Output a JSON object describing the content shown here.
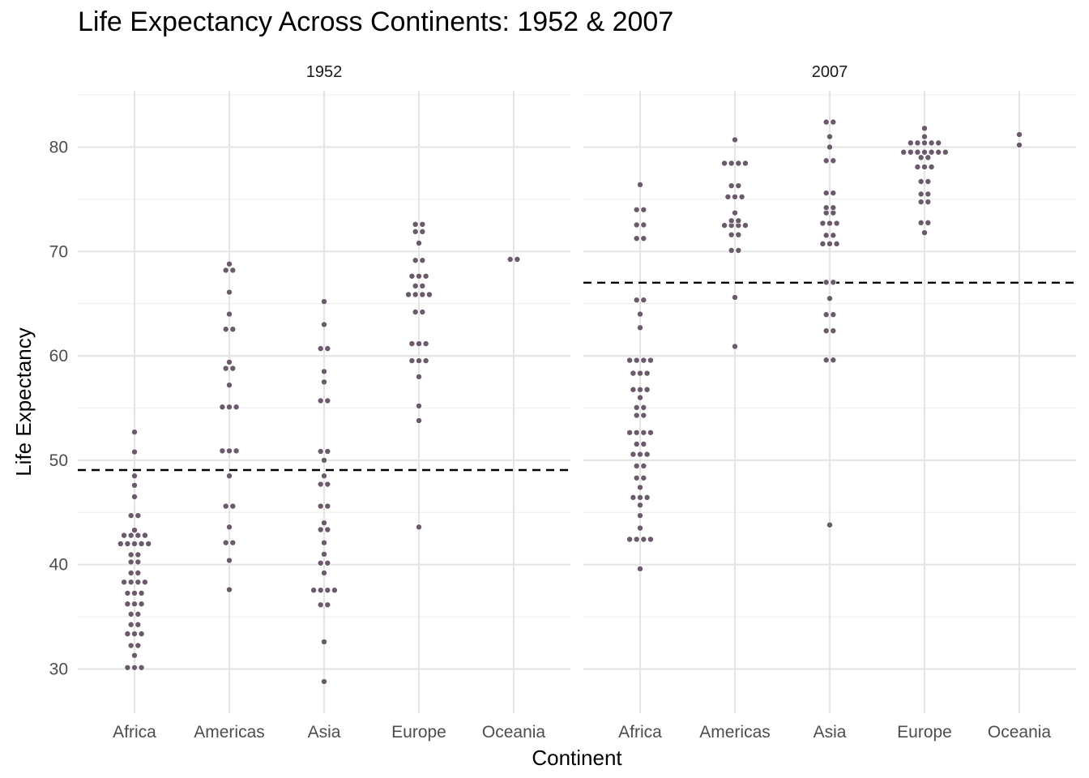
{
  "chart_data": {
    "type": "scatter",
    "subtype": "beeswarm",
    "title": "Life Expectancy Across Continents: 1952 & 2007",
    "xlabel": "Continent",
    "ylabel": "Life Expectancy",
    "categories": [
      "Africa",
      "Americas",
      "Asia",
      "Europe",
      "Oceania"
    ],
    "ylim": [
      26,
      85
    ],
    "yticks": [
      30,
      40,
      50,
      60,
      70,
      80
    ],
    "grid": true,
    "reference_line_style": "dashed",
    "point_color": "#6b5a6b",
    "panels": [
      {
        "strip_label": "1952",
        "reference_line": 49.06,
        "series": [
          {
            "category": "Africa",
            "values": [
              30.0,
              30.1,
              30.3,
              31.3,
              32.0,
              32.5,
              33.0,
              33.5,
              33.6,
              34.0,
              34.5,
              35.0,
              35.5,
              35.9,
              36.3,
              36.5,
              37.0,
              37.3,
              37.5,
              38.1,
              38.2,
              38.4,
              38.6,
              39.0,
              39.4,
              40.0,
              40.5,
              40.7,
              41.2,
              41.7,
              41.9,
              42.0,
              42.1,
              42.3,
              42.5,
              42.6,
              43.0,
              43.1,
              43.3,
              44.6,
              44.8,
              46.5,
              47.6,
              48.5,
              50.8,
              52.7
            ]
          },
          {
            "category": "Americas",
            "values": [
              37.6,
              40.4,
              41.9,
              42.3,
              43.6,
              45.3,
              45.9,
              48.5,
              50.8,
              50.9,
              51.0,
              55.0,
              55.1,
              55.2,
              57.2,
              58.5,
              59.1,
              59.4,
              62.5,
              62.6,
              64.0,
              66.1,
              68.0,
              68.4,
              68.8
            ]
          },
          {
            "category": "Asia",
            "values": [
              28.8,
              32.6,
              36.1,
              36.2,
              37.4,
              37.5,
              37.6,
              37.7,
              39.2,
              39.9,
              40.4,
              41.0,
              42.1,
              43.3,
              43.4,
              44.0,
              45.3,
              45.9,
              47.5,
              47.9,
              48.5,
              50.0,
              50.8,
              50.9,
              55.6,
              55.8,
              57.5,
              58.5,
              60.4,
              61.0,
              63.0,
              65.2
            ]
          },
          {
            "category": "Europe",
            "values": [
              43.6,
              53.8,
              55.2,
              58.0,
              59.2,
              59.6,
              59.8,
              61.0,
              61.2,
              61.3,
              64.0,
              64.4,
              65.5,
              65.9,
              66.0,
              66.1,
              66.5,
              66.9,
              67.4,
              67.5,
              68.0,
              68.9,
              69.4,
              70.8,
              71.8,
              72.0,
              72.5,
              72.7
            ]
          },
          {
            "category": "Oceania",
            "values": [
              69.1,
              69.4
            ]
          }
        ]
      },
      {
        "strip_label": "2007",
        "reference_line": 67.01,
        "series": [
          {
            "category": "Africa",
            "values": [
              39.6,
              42.1,
              42.4,
              42.6,
              42.6,
              43.5,
              44.7,
              45.7,
              46.4,
              46.4,
              46.5,
              47.4,
              48.3,
              48.3,
              49.3,
              49.6,
              50.4,
              50.6,
              50.7,
              51.5,
              51.6,
              52.3,
              52.5,
              52.9,
              52.9,
              54.1,
              54.5,
              54.8,
              55.3,
              56.0,
              56.7,
              56.7,
              56.9,
              58.0,
              58.4,
              58.6,
              59.4,
              59.4,
              59.5,
              60.0,
              62.7,
              64.0,
              65.2,
              65.5,
              71.2,
              71.3,
              72.3,
              72.8,
              74.0,
              74.0,
              76.4
            ]
          },
          {
            "category": "Americas",
            "values": [
              60.9,
              65.6,
              70.0,
              70.2,
              71.4,
              71.8,
              72.2,
              72.4,
              72.6,
              72.8,
              72.9,
              73.0,
              73.7,
              74.9,
              75.3,
              75.5,
              76.2,
              76.4,
              78.2,
              78.3,
              78.6,
              78.7,
              80.7
            ]
          },
          {
            "category": "Asia",
            "values": [
              43.8,
              59.5,
              59.7,
              62.1,
              62.7,
              63.8,
              64.1,
              65.5,
              66.8,
              67.3,
              70.6,
              70.7,
              70.9,
              71.4,
              71.7,
              72.4,
              72.8,
              72.9,
              73.4,
              74.0,
              74.2,
              74.2,
              75.6,
              75.6,
              78.4,
              79.0,
              80.0,
              81.0,
              82.2,
              82.6
            ]
          },
          {
            "category": "Europe",
            "values": [
              71.8,
              72.5,
              73.0,
              74.5,
              75.0,
              75.3,
              75.7,
              76.4,
              77.0,
              77.9,
              78.1,
              78.3,
              78.7,
              79.3,
              79.4,
              79.4,
              79.4,
              79.5,
              79.5,
              79.6,
              79.8,
              80.1,
              80.2,
              80.5,
              80.5,
              80.7,
              81.0,
              81.8
            ]
          },
          {
            "category": "Oceania",
            "values": [
              80.2,
              81.2
            ]
          }
        ]
      }
    ]
  }
}
